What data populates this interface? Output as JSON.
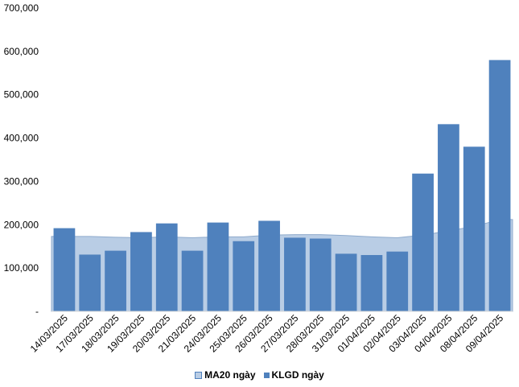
{
  "chart_data": {
    "type": "bar",
    "categories": [
      "14/03/2025",
      "17/03/2025",
      "18/03/2025",
      "19/03/2025",
      "20/03/2025",
      "21/03/2025",
      "24/03/2025",
      "25/03/2025",
      "26/03/2025",
      "27/03/2025",
      "28/03/2025",
      "31/03/2025",
      "01/04/2025",
      "02/04/2025",
      "03/04/2025",
      "04/04/2025",
      "08/04/2025",
      "09/04/2025"
    ],
    "series": [
      {
        "name": "KLGD ngày",
        "type": "bar",
        "color": "#4f81bd",
        "values": [
          192000,
          131000,
          140000,
          183000,
          203000,
          140000,
          205000,
          162000,
          209000,
          170000,
          168000,
          133000,
          130000,
          138000,
          318000,
          432000,
          380000,
          580000
        ]
      },
      {
        "name": "MA20 ngày",
        "type": "area",
        "color": "#b9cde5",
        "values": [
          173000,
          173000,
          171000,
          170000,
          172000,
          170000,
          172000,
          172000,
          176000,
          177000,
          177000,
          175000,
          172000,
          170000,
          176000,
          186000,
          196000,
          212000
        ]
      }
    ],
    "ylim": [
      0,
      700000
    ],
    "yticks": [
      "-",
      "100,000",
      "200,000",
      "300,000",
      "400,000",
      "500,000",
      "600,000",
      "700,000"
    ],
    "ytick_values": [
      0,
      100000,
      200000,
      300000,
      400000,
      500000,
      600000,
      700000
    ],
    "grid": false,
    "legend_position": "bottom"
  }
}
